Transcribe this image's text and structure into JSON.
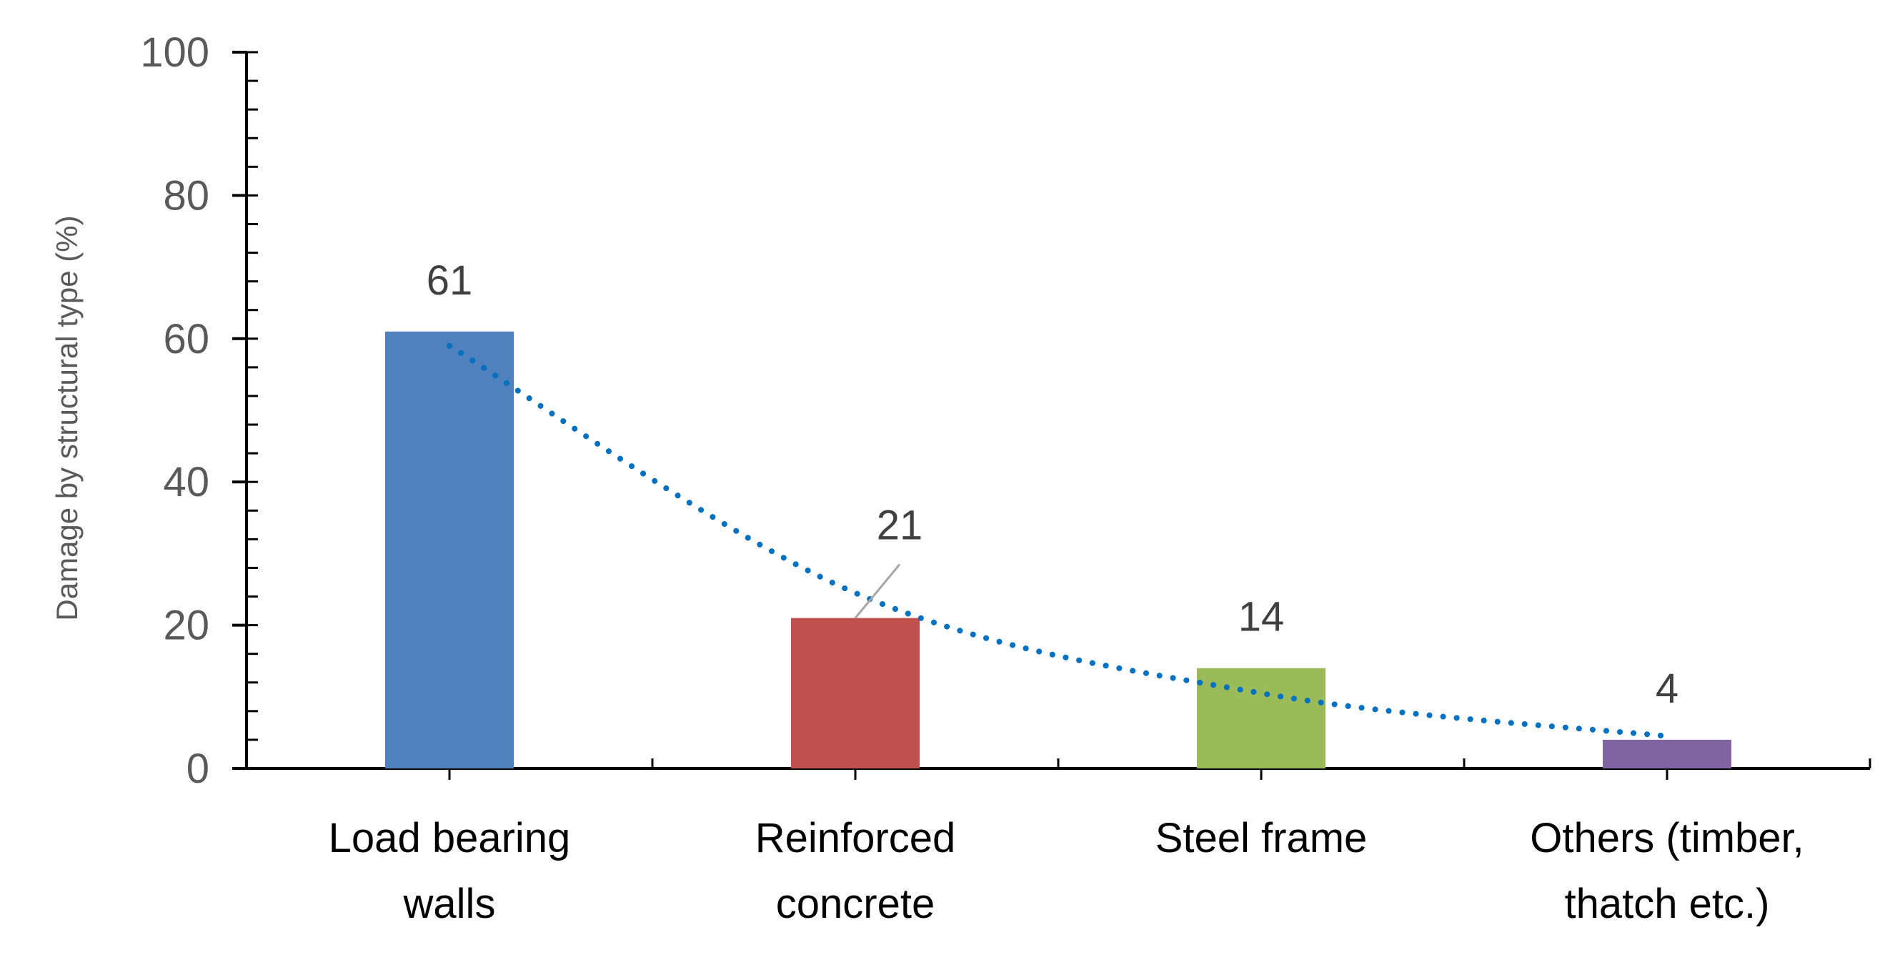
{
  "chart_data": {
    "type": "bar",
    "title": "",
    "xlabel": "",
    "ylabel": "Damage by structural type (%)",
    "ylim": [
      0,
      100
    ],
    "y_major_ticks": [
      0,
      20,
      40,
      60,
      80,
      100
    ],
    "y_minor_step": 4,
    "grid": false,
    "categories": [
      [
        "Load bearing",
        "walls"
      ],
      [
        "Reinforced",
        "concrete"
      ],
      [
        "Steel frame"
      ],
      [
        "Others (timber,",
        "thatch etc.)"
      ]
    ],
    "values": [
      61,
      21,
      14,
      4
    ],
    "data_labels": [
      "61",
      "21",
      "14",
      "4"
    ],
    "colors": [
      "#4F81BD",
      "#C0504D",
      "#9BBB59",
      "#8064A2"
    ],
    "trendline": {
      "type": "exponential",
      "style": "dotted",
      "color": "#0070C0",
      "points": [
        59.0,
        24.5,
        10.5,
        4.5
      ]
    }
  }
}
